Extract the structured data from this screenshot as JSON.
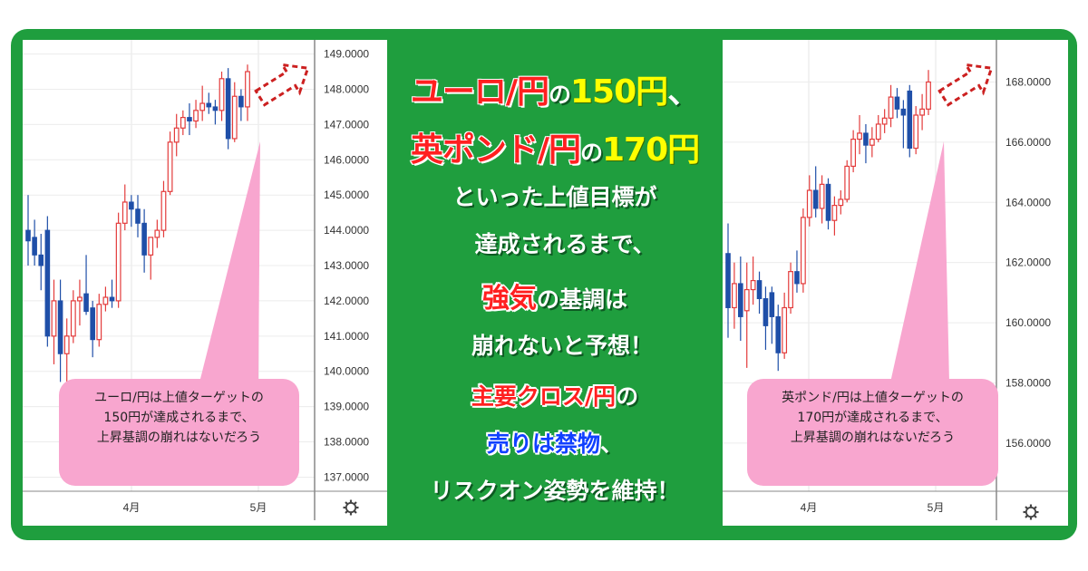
{
  "chart_data": [
    {
      "type": "candlestick",
      "y_ticks": [
        "149.0000",
        "148.0000",
        "147.0000",
        "146.0000",
        "145.0000",
        "144.0000",
        "143.0000",
        "142.0000",
        "141.0000",
        "140.0000",
        "139.0000",
        "138.0000",
        "137.0000"
      ],
      "x_ticks": [
        "4月",
        "5月"
      ],
      "ylim": [
        136.6,
        149.4
      ],
      "up_color": "#e33b3b",
      "down_color": "#1f4fa8",
      "candles": [
        {
          "o": 144.0,
          "h": 145.0,
          "l": 143.0,
          "c": 143.7
        },
        {
          "o": 143.8,
          "h": 144.3,
          "l": 143.0,
          "c": 143.3
        },
        {
          "o": 143.3,
          "h": 143.9,
          "l": 142.3,
          "c": 143.0
        },
        {
          "o": 144.0,
          "h": 144.4,
          "l": 140.7,
          "c": 141.0
        },
        {
          "o": 141.0,
          "h": 142.6,
          "l": 140.2,
          "c": 142.0
        },
        {
          "o": 142.0,
          "h": 142.6,
          "l": 139.7,
          "c": 140.5
        },
        {
          "o": 140.5,
          "h": 141.5,
          "l": 139.4,
          "c": 141.0
        },
        {
          "o": 141.0,
          "h": 142.3,
          "l": 140.8,
          "c": 142.0
        },
        {
          "o": 142.0,
          "h": 142.6,
          "l": 141.3,
          "c": 142.1
        },
        {
          "o": 142.2,
          "h": 143.3,
          "l": 141.6,
          "c": 141.7
        },
        {
          "o": 141.8,
          "h": 142.0,
          "l": 140.4,
          "c": 140.9
        },
        {
          "o": 140.9,
          "h": 142.2,
          "l": 140.7,
          "c": 141.9
        },
        {
          "o": 141.9,
          "h": 142.4,
          "l": 141.7,
          "c": 142.1
        },
        {
          "o": 142.1,
          "h": 142.6,
          "l": 141.8,
          "c": 142.0
        },
        {
          "o": 142.0,
          "h": 144.5,
          "l": 141.8,
          "c": 144.2
        },
        {
          "o": 144.2,
          "h": 145.3,
          "l": 144.0,
          "c": 144.8
        },
        {
          "o": 144.8,
          "h": 145.0,
          "l": 144.1,
          "c": 144.6
        },
        {
          "o": 144.6,
          "h": 145.0,
          "l": 143.8,
          "c": 144.2
        },
        {
          "o": 144.2,
          "h": 144.6,
          "l": 142.8,
          "c": 143.3
        },
        {
          "o": 143.3,
          "h": 143.8,
          "l": 142.6,
          "c": 143.8
        },
        {
          "o": 143.8,
          "h": 144.3,
          "l": 143.5,
          "c": 144.0
        },
        {
          "o": 144.0,
          "h": 145.4,
          "l": 143.8,
          "c": 145.1
        },
        {
          "o": 145.1,
          "h": 146.8,
          "l": 145.0,
          "c": 146.5
        },
        {
          "o": 146.5,
          "h": 147.3,
          "l": 146.1,
          "c": 146.9
        },
        {
          "o": 146.9,
          "h": 147.4,
          "l": 146.7,
          "c": 147.2
        },
        {
          "o": 147.2,
          "h": 147.6,
          "l": 146.7,
          "c": 147.1
        },
        {
          "o": 147.1,
          "h": 147.7,
          "l": 146.9,
          "c": 147.4
        },
        {
          "o": 147.4,
          "h": 148.1,
          "l": 147.1,
          "c": 147.6
        },
        {
          "o": 147.6,
          "h": 147.9,
          "l": 147.3,
          "c": 147.5
        },
        {
          "o": 147.5,
          "h": 147.7,
          "l": 147.0,
          "c": 147.4
        },
        {
          "o": 147.4,
          "h": 148.5,
          "l": 147.1,
          "c": 148.3
        },
        {
          "o": 148.3,
          "h": 148.6,
          "l": 146.3,
          "c": 146.6
        },
        {
          "o": 146.6,
          "h": 148.2,
          "l": 146.5,
          "c": 147.8
        },
        {
          "o": 147.8,
          "h": 148.0,
          "l": 147.1,
          "c": 147.5
        },
        {
          "o": 147.5,
          "h": 148.7,
          "l": 147.1,
          "c": 148.5
        }
      ]
    },
    {
      "type": "candlestick",
      "y_ticks": [
        "168.0000",
        "166.0000",
        "164.0000",
        "162.0000",
        "160.0000",
        "158.0000",
        "156.0000"
      ],
      "x_ticks": [
        "4月",
        "5月"
      ],
      "ylim": [
        154.4,
        169.4
      ],
      "up_color": "#e33b3b",
      "down_color": "#1f4fa8",
      "candles": [
        {
          "o": 162.3,
          "h": 163.3,
          "l": 159.5,
          "c": 160.5
        },
        {
          "o": 160.5,
          "h": 162.0,
          "l": 159.8,
          "c": 161.3
        },
        {
          "o": 161.3,
          "h": 162.2,
          "l": 159.4,
          "c": 160.2
        },
        {
          "o": 160.4,
          "h": 162.0,
          "l": 158.5,
          "c": 161.1
        },
        {
          "o": 161.1,
          "h": 162.2,
          "l": 160.6,
          "c": 161.4
        },
        {
          "o": 161.4,
          "h": 161.7,
          "l": 160.3,
          "c": 160.8
        },
        {
          "o": 160.8,
          "h": 161.2,
          "l": 159.1,
          "c": 159.9
        },
        {
          "o": 161.0,
          "h": 161.2,
          "l": 159.3,
          "c": 160.2
        },
        {
          "o": 160.2,
          "h": 160.6,
          "l": 158.4,
          "c": 159.0
        },
        {
          "o": 159.0,
          "h": 161.0,
          "l": 158.8,
          "c": 160.5
        },
        {
          "o": 160.5,
          "h": 162.0,
          "l": 160.3,
          "c": 161.7
        },
        {
          "o": 161.7,
          "h": 162.4,
          "l": 161.0,
          "c": 161.3
        },
        {
          "o": 161.3,
          "h": 163.8,
          "l": 161.0,
          "c": 163.5
        },
        {
          "o": 163.5,
          "h": 164.9,
          "l": 163.2,
          "c": 164.4
        },
        {
          "o": 164.4,
          "h": 165.2,
          "l": 163.5,
          "c": 163.8
        },
        {
          "o": 163.8,
          "h": 164.9,
          "l": 163.3,
          "c": 164.6
        },
        {
          "o": 164.6,
          "h": 164.8,
          "l": 163.1,
          "c": 163.4
        },
        {
          "o": 163.4,
          "h": 164.2,
          "l": 162.9,
          "c": 163.9
        },
        {
          "o": 163.9,
          "h": 164.4,
          "l": 163.6,
          "c": 164.1
        },
        {
          "o": 164.1,
          "h": 165.4,
          "l": 164.0,
          "c": 165.2
        },
        {
          "o": 165.2,
          "h": 166.4,
          "l": 165.0,
          "c": 166.1
        },
        {
          "o": 166.1,
          "h": 166.9,
          "l": 165.6,
          "c": 166.3
        },
        {
          "o": 166.3,
          "h": 166.6,
          "l": 165.3,
          "c": 165.9
        },
        {
          "o": 165.9,
          "h": 166.5,
          "l": 165.5,
          "c": 166.1
        },
        {
          "o": 166.1,
          "h": 166.9,
          "l": 166.0,
          "c": 166.6
        },
        {
          "o": 166.6,
          "h": 167.1,
          "l": 166.3,
          "c": 166.8
        },
        {
          "o": 166.8,
          "h": 167.9,
          "l": 166.5,
          "c": 167.5
        },
        {
          "o": 167.5,
          "h": 167.8,
          "l": 166.8,
          "c": 167.1
        },
        {
          "o": 167.1,
          "h": 167.4,
          "l": 165.8,
          "c": 166.9
        },
        {
          "o": 167.7,
          "h": 167.9,
          "l": 165.5,
          "c": 165.8
        },
        {
          "o": 165.8,
          "h": 167.2,
          "l": 165.6,
          "c": 166.9
        },
        {
          "o": 166.9,
          "h": 167.6,
          "l": 166.4,
          "c": 167.1
        },
        {
          "o": 167.1,
          "h": 168.4,
          "l": 166.9,
          "c": 168.0
        }
      ]
    }
  ],
  "callouts": {
    "left": [
      "ユーロ/円は上値ターゲットの",
      "150円が達成されるまで、",
      "上昇基調の崩れはないだろう"
    ],
    "right": [
      "英ポンド/円は上値ターゲットの",
      "170円が達成されるまで、",
      "上昇基調の崩れはないだろう"
    ]
  },
  "headline": {
    "l1_red": "ユーロ/円",
    "l1_white": "の",
    "l1_yellow": "150円",
    "l1_tail": "、",
    "l2_red": "英ポンド/円",
    "l2_white": "の",
    "l2_yellow": "170円",
    "l3": "といった上値目標が",
    "l4": "達成されるまで、",
    "l5_red": "強気",
    "l5_white": "の基調は",
    "l6": "崩れないと予想！",
    "l7_red": "主要クロス/円",
    "l7_white": "の",
    "l8_blue": "売りは禁物",
    "l8_white": "、",
    "l9": "リスクオン姿勢を維持！"
  },
  "colors": {
    "frame_green": "#1f9e3e",
    "callout_pink": "#f8a6cf",
    "arrow_red": "#cc2020",
    "headline_red": "#ff2020",
    "headline_yellow": "#ffff00",
    "headline_blue": "#1040ff"
  },
  "icons": {
    "settings": "gear-icon",
    "target": "dashed-arrow-icon"
  }
}
